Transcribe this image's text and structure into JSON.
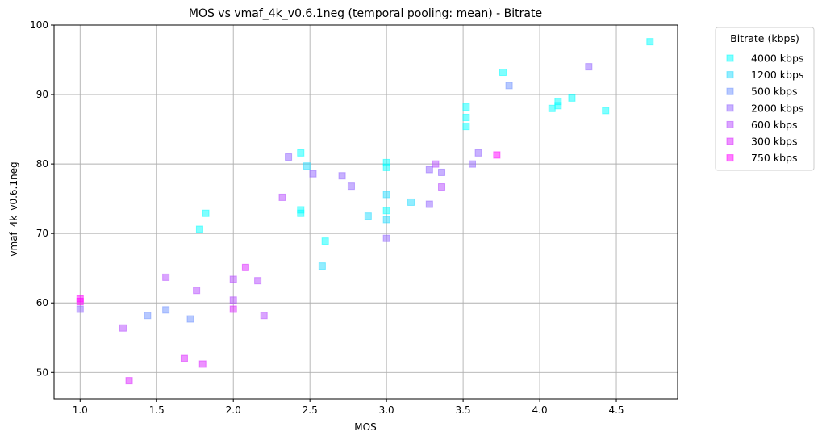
{
  "chart_data": {
    "type": "scatter",
    "title": "MOS vs vmaf_4k_v0.6.1neg (temporal pooling: mean) - Bitrate",
    "xlabel": "MOS",
    "ylabel": "vmaf_4k_v0.6.1neg",
    "xlim": [
      0.83,
      4.9
    ],
    "ylim": [
      46.2,
      100
    ],
    "xticks": [
      1.0,
      1.5,
      2.0,
      2.5,
      3.0,
      3.5,
      4.0,
      4.5
    ],
    "xtick_labels": [
      "1.0",
      "1.5",
      "2.0",
      "2.5",
      "3.0",
      "3.5",
      "4.0",
      "4.5"
    ],
    "yticks": [
      50,
      60,
      70,
      80,
      90,
      100
    ],
    "ytick_labels": [
      "50",
      "60",
      "70",
      "80",
      "90",
      "100"
    ],
    "grid": true,
    "legend": {
      "title": "Bitrate (kbps)",
      "placement": "outside-right"
    },
    "marker": "square",
    "series": [
      {
        "name": "4000 kbps",
        "color": "#00ffff",
        "points": [
          [
            4.72,
            97.6
          ],
          [
            3.76,
            93.2
          ],
          [
            4.21,
            89.5
          ],
          [
            4.12,
            89.0
          ],
          [
            4.12,
            88.4
          ],
          [
            4.08,
            88.0
          ],
          [
            4.43,
            87.7
          ],
          [
            3.52,
            88.2
          ],
          [
            3.52,
            86.7
          ],
          [
            3.52,
            85.4
          ],
          [
            2.44,
            81.6
          ],
          [
            3.0,
            80.2
          ],
          [
            3.0,
            79.5
          ],
          [
            2.44,
            73.4
          ],
          [
            2.44,
            72.9
          ],
          [
            3.0,
            73.3
          ],
          [
            1.82,
            72.9
          ],
          [
            1.78,
            70.6
          ],
          [
            2.6,
            68.9
          ]
        ]
      },
      {
        "name": "1200 kbps",
        "color": "#24dbff",
        "points": [
          [
            2.48,
            79.7
          ],
          [
            3.0,
            75.6
          ],
          [
            3.0,
            72.0
          ],
          [
            3.16,
            74.5
          ],
          [
            2.88,
            72.5
          ],
          [
            2.58,
            65.3
          ]
        ]
      },
      {
        "name": "500 kbps",
        "color": "#6d92ff",
        "points": [
          [
            3.8,
            91.3
          ],
          [
            1.44,
            58.2
          ],
          [
            1.56,
            59.0
          ],
          [
            1.72,
            57.7
          ]
        ]
      },
      {
        "name": "2000 kbps",
        "color": "#9264ff",
        "points": [
          [
            4.32,
            94.0
          ],
          [
            3.6,
            81.6
          ],
          [
            3.56,
            80.0
          ],
          [
            3.36,
            78.8
          ],
          [
            3.28,
            79.2
          ],
          [
            3.28,
            74.2
          ],
          [
            2.36,
            81.0
          ],
          [
            2.52,
            78.6
          ],
          [
            2.71,
            78.3
          ],
          [
            2.77,
            76.8
          ],
          [
            3.0,
            69.3
          ],
          [
            1.0,
            59.1
          ]
        ]
      },
      {
        "name": "600 kbps",
        "color": "#b649ff",
        "points": [
          [
            3.32,
            80.0
          ],
          [
            3.36,
            76.7
          ],
          [
            2.32,
            75.2
          ],
          [
            1.56,
            63.7
          ],
          [
            1.76,
            61.8
          ],
          [
            2.0,
            63.4
          ],
          [
            2.16,
            63.2
          ],
          [
            2.0,
            60.4
          ],
          [
            2.2,
            58.2
          ],
          [
            1.28,
            56.4
          ]
        ]
      },
      {
        "name": "300 kbps",
        "color": "#db24ff",
        "points": [
          [
            2.08,
            65.1
          ],
          [
            2.0,
            59.1
          ],
          [
            1.68,
            52.0
          ],
          [
            1.8,
            51.2
          ],
          [
            1.32,
            48.8
          ]
        ]
      },
      {
        "name": "750 kbps",
        "color": "#ff00ff",
        "points": [
          [
            3.72,
            81.3
          ],
          [
            1.0,
            60.6
          ],
          [
            1.0,
            60.2
          ]
        ]
      }
    ]
  }
}
